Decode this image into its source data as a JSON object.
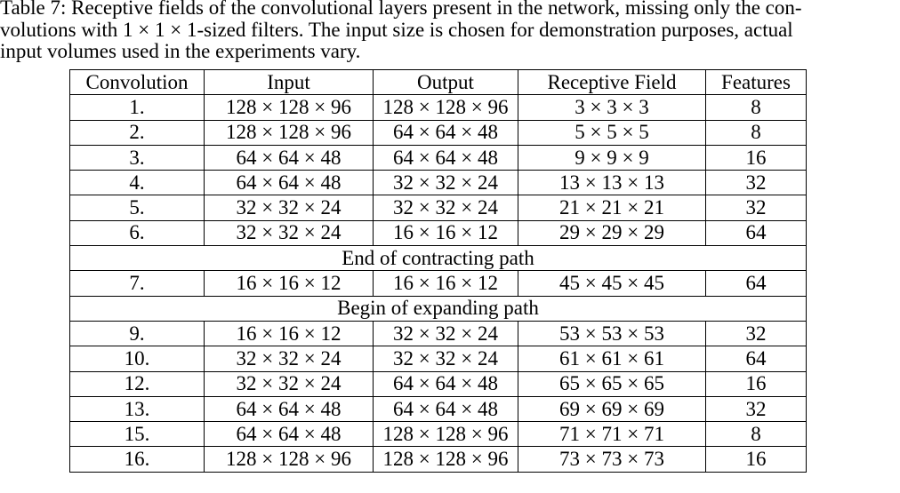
{
  "caption": {
    "lines": [
      "Table 7: Receptive fields of the convolutional layers present in the network, missing only the con-",
      "volutions with 1 × 1 × 1-sized filters. The input size is chosen for demonstration purposes, actual",
      "input volumes used in the experiments vary."
    ]
  },
  "table": {
    "headers": [
      "Convolution",
      "Input",
      "Output",
      "Receptive Field",
      "Features"
    ],
    "group1": [
      [
        "1.",
        "128 × 128 × 96",
        "128 × 128 × 96",
        "3 × 3 × 3",
        "8"
      ],
      [
        "2.",
        "128 × 128 × 96",
        "64 × 64 × 48",
        "5 × 5 × 5",
        "8"
      ],
      [
        "3.",
        "64 × 64 × 48",
        "64 × 64 × 48",
        "9 × 9 × 9",
        "16"
      ],
      [
        "4.",
        "64 × 64 × 48",
        "32 × 32 × 24",
        "13 × 13 × 13",
        "32"
      ],
      [
        "5.",
        "32 × 32 × 24",
        "32 × 32 × 24",
        "21 × 21 × 21",
        "32"
      ],
      [
        "6.",
        "32 × 32 × 24",
        "16 × 16 × 12",
        "29 × 29 × 29",
        "64"
      ]
    ],
    "section1": "End of contracting path",
    "group2": [
      [
        "7.",
        "16 × 16 × 12",
        "16 × 16 × 12",
        "45 × 45 × 45",
        "64"
      ]
    ],
    "section2": "Begin of expanding path",
    "group3": [
      [
        "9.",
        "16 × 16 × 12",
        "32 × 32 × 24",
        "53 × 53 × 53",
        "32"
      ],
      [
        "10.",
        "32 × 32 × 24",
        "32 × 32 × 24",
        "61 × 61 × 61",
        "64"
      ],
      [
        "12.",
        "32 × 32 × 24",
        "64 × 64 × 48",
        "65 × 65 × 65",
        "16"
      ],
      [
        "13.",
        "64 × 64 × 48",
        "64 × 64 × 48",
        "69 × 69 × 69",
        "32"
      ],
      [
        "15.",
        "64 × 64 × 48",
        "128 × 128 × 96",
        "71 × 71 × 71",
        "8"
      ],
      [
        "16.",
        "128 × 128 × 96",
        "128 × 128 × 96",
        "73 × 73 × 73",
        "16"
      ]
    ]
  }
}
